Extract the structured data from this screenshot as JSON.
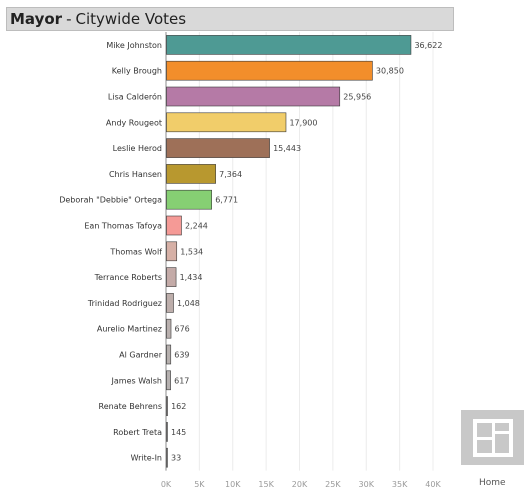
{
  "header": {
    "title_main": "Mayor",
    "title_sep": "-",
    "title_rest": "Citywide Votes"
  },
  "nav": {
    "home_label": "Home",
    "home_icon": "dashboard-grid-icon"
  },
  "chart_data": {
    "type": "bar",
    "orientation": "horizontal",
    "categories": [
      "Mike Johnston",
      "Kelly Brough",
      "Lisa Calderón",
      "Andy Rougeot",
      "Leslie Herod",
      "Chris Hansen",
      "Deborah \"Debbie\" Ortega",
      "Ean Thomas Tafoya",
      "Thomas Wolf",
      "Terrance Roberts",
      "Trinidad Rodriguez",
      "Aurelio Martinez",
      "Al Gardner",
      "James Walsh",
      "Renate Behrens",
      "Robert Treta",
      "Write-In"
    ],
    "values": [
      36622,
      30850,
      25956,
      17900,
      15443,
      7364,
      6771,
      2244,
      1534,
      1434,
      1048,
      676,
      639,
      617,
      162,
      145,
      33
    ],
    "value_labels": [
      "36,622",
      "30,850",
      "25,956",
      "17,900",
      "15,443",
      "7,364",
      "6,771",
      "2,244",
      "1,534",
      "1,434",
      "1,048",
      "676",
      "639",
      "617",
      "162",
      "145",
      "33"
    ],
    "colors": [
      "#4e9a94",
      "#f28e2b",
      "#b57aa6",
      "#f1cd6a",
      "#9e7058",
      "#b8982f",
      "#86cf73",
      "#f59a96",
      "#d6b0a6",
      "#c4aba8",
      "#bdaeab",
      "#b9b0ae",
      "#b6b0ae",
      "#b5b0af",
      "#b3b0af",
      "#b2b0b0",
      "#b1b0b0"
    ],
    "xticks": [
      0,
      5000,
      10000,
      15000,
      20000,
      25000,
      30000,
      35000,
      40000
    ],
    "xtick_labels": [
      "0K",
      "5K",
      "10K",
      "15K",
      "20K",
      "25K",
      "30K",
      "35K",
      "40K"
    ],
    "xlim": [
      0,
      40000
    ],
    "grid": true,
    "title": "",
    "xlabel": "",
    "ylabel": ""
  }
}
